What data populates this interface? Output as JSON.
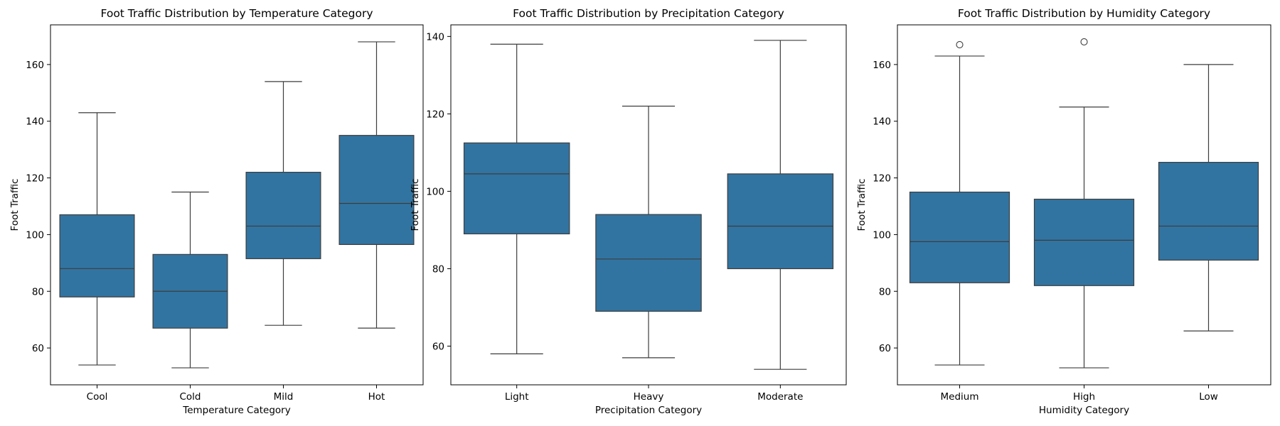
{
  "figure": {
    "background": "#ffffff"
  },
  "colors": {
    "box": "#3274a1",
    "line": "#3d3d3d"
  },
  "chart_data": [
    {
      "type": "box",
      "title": "Foot Traffic Distribution by Temperature Category",
      "xlabel": "Temperature Category",
      "ylabel": "Foot Traffic",
      "ylim": [
        47,
        174
      ],
      "yticks": [
        60,
        80,
        100,
        120,
        140,
        160
      ],
      "categories": [
        "Cool",
        "Cold",
        "Mild",
        "Hot"
      ],
      "boxes": [
        {
          "whisker_low": 54,
          "q1": 78,
          "median": 88,
          "q3": 107,
          "whisker_high": 143,
          "outliers": []
        },
        {
          "whisker_low": 53,
          "q1": 67,
          "median": 80,
          "q3": 93,
          "whisker_high": 115,
          "outliers": []
        },
        {
          "whisker_low": 68,
          "q1": 91.5,
          "median": 103,
          "q3": 122,
          "whisker_high": 154,
          "outliers": []
        },
        {
          "whisker_low": 67,
          "q1": 96.5,
          "median": 111,
          "q3": 135,
          "whisker_high": 168,
          "outliers": []
        }
      ]
    },
    {
      "type": "box",
      "title": "Foot Traffic Distribution by Precipitation Category",
      "xlabel": "Precipitation Category",
      "ylabel": "Foot Traffic",
      "ylim": [
        50,
        143
      ],
      "yticks": [
        60,
        80,
        100,
        120,
        140
      ],
      "categories": [
        "Light",
        "Heavy",
        "Moderate"
      ],
      "boxes": [
        {
          "whisker_low": 58,
          "q1": 89,
          "median": 104.5,
          "q3": 112.5,
          "whisker_high": 138,
          "outliers": []
        },
        {
          "whisker_low": 57,
          "q1": 69,
          "median": 82.5,
          "q3": 94,
          "whisker_high": 122,
          "outliers": []
        },
        {
          "whisker_low": 54,
          "q1": 80,
          "median": 91,
          "q3": 104.5,
          "whisker_high": 139,
          "outliers": []
        }
      ]
    },
    {
      "type": "box",
      "title": "Foot Traffic Distribution by Humidity Category",
      "xlabel": "Humidity Category",
      "ylabel": "Foot Traffic",
      "ylim": [
        47,
        174
      ],
      "yticks": [
        60,
        80,
        100,
        120,
        140,
        160
      ],
      "categories": [
        "Medium",
        "High",
        "Low"
      ],
      "boxes": [
        {
          "whisker_low": 54,
          "q1": 83,
          "median": 97.5,
          "q3": 115,
          "whisker_high": 163,
          "outliers": [
            167
          ]
        },
        {
          "whisker_low": 53,
          "q1": 82,
          "median": 98,
          "q3": 112.5,
          "whisker_high": 145,
          "outliers": [
            168
          ]
        },
        {
          "whisker_low": 66,
          "q1": 91,
          "median": 103,
          "q3": 125.5,
          "whisker_high": 160,
          "outliers": []
        }
      ]
    }
  ]
}
